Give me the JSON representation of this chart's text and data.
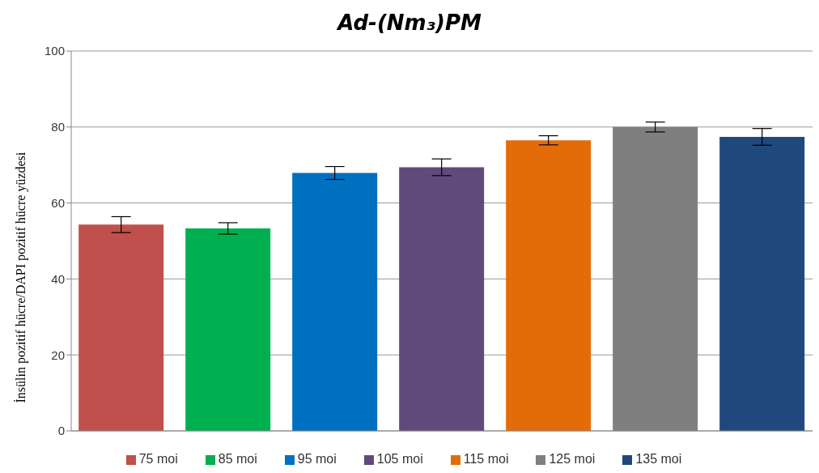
{
  "chart_data": {
    "type": "bar",
    "title": "Ad-(Nm₃)PM",
    "ylabel": "İnsülin pozitif hücre/DAPI pozitif hücre yüzdesi",
    "categories": [
      null
    ],
    "series": [
      {
        "name": "75 moi",
        "color": "#c0504d",
        "values": [
          54.3
        ],
        "errors": [
          2.1
        ]
      },
      {
        "name": "85 moi",
        "color": "#00b050",
        "values": [
          53.3
        ],
        "errors": [
          1.5
        ]
      },
      {
        "name": "95 moi",
        "color": "#0070c0",
        "values": [
          67.9
        ],
        "errors": [
          1.7
        ]
      },
      {
        "name": "105 moi",
        "color": "#604a7b",
        "values": [
          69.4
        ],
        "errors": [
          2.2
        ]
      },
      {
        "name": "115 moi",
        "color": "#e36c09",
        "values": [
          76.5
        ],
        "errors": [
          1.2
        ]
      },
      {
        "name": "125 moi",
        "color": "#7f7f7f",
        "values": [
          80
        ],
        "errors": [
          1.3
        ]
      },
      {
        "name": "135 moi",
        "color": "#1f497d",
        "values": [
          77.4
        ],
        "errors": [
          2.2
        ]
      }
    ],
    "ylim": [
      0,
      100
    ],
    "yticks": [
      0,
      20,
      40,
      60,
      80,
      100
    ],
    "grid": "y",
    "legend": "bottom"
  }
}
